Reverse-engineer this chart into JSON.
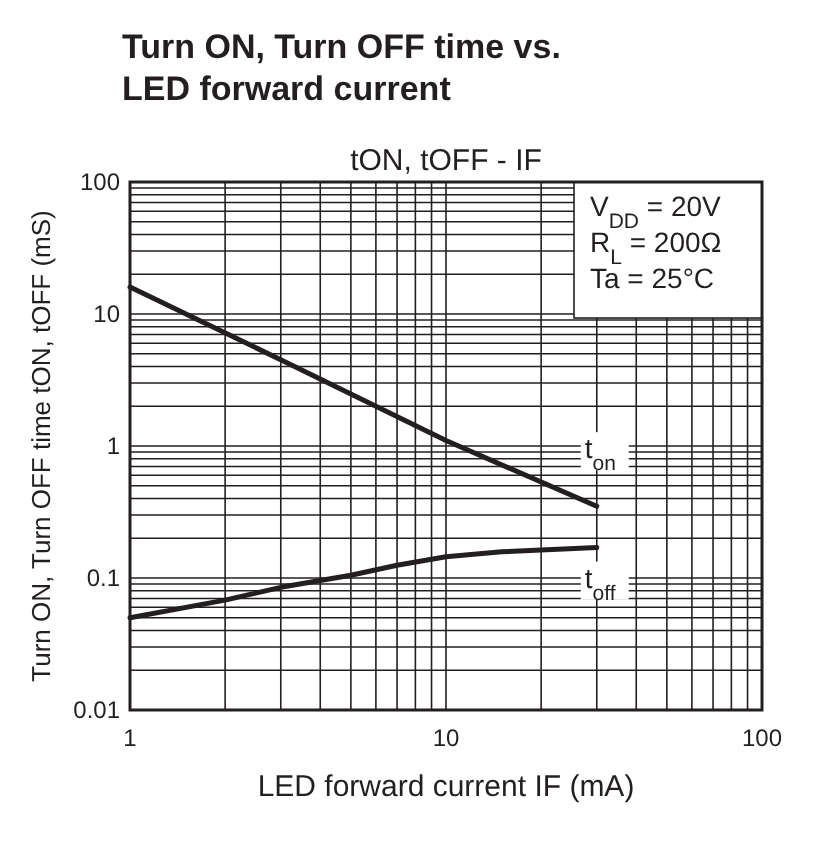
{
  "chart_data": {
    "type": "line",
    "title": "Turn ON, Turn OFF time vs. LED forward current",
    "subtitle": "tON, tOFF - IF",
    "xlabel": "LED forward current IF (mA)",
    "ylabel": "Turn ON, Turn OFF time tON, tOFF (mS)",
    "log": "xy",
    "grid": true,
    "line_style": "solid",
    "xlim": [
      1,
      100
    ],
    "xticks": [
      1,
      {
        "value": 2,
        "label": null
      },
      {
        "value": 3,
        "label": null
      },
      {
        "value": 4,
        "label": null
      },
      {
        "value": 5,
        "label": null
      },
      {
        "value": 6,
        "label": null
      },
      {
        "value": 7,
        "label": null
      },
      {
        "value": 8,
        "label": null
      },
      {
        "value": 9,
        "label": null
      },
      10,
      {
        "value": 20,
        "label": null
      },
      {
        "value": 30,
        "label": null
      },
      {
        "value": 40,
        "label": null
      },
      {
        "value": 50,
        "label": null
      },
      {
        "value": 60,
        "label": null
      },
      {
        "value": 70,
        "label": null
      },
      {
        "value": 80,
        "label": null
      },
      {
        "value": 90,
        "label": null
      },
      100
    ],
    "ylim": [
      0.01,
      100
    ],
    "yticks": [
      0.01,
      {
        "value": 0.02,
        "label": null
      },
      {
        "value": 0.03,
        "label": null
      },
      {
        "value": 0.04,
        "label": null
      },
      {
        "value": 0.05,
        "label": null
      },
      {
        "value": 0.06,
        "label": null
      },
      {
        "value": 0.07,
        "label": null
      },
      {
        "value": 0.08,
        "label": null
      },
      {
        "value": 0.09,
        "label": null
      },
      0.1,
      {
        "value": 0.2,
        "label": null
      },
      {
        "value": 0.3,
        "label": null
      },
      {
        "value": 0.4,
        "label": null
      },
      {
        "value": 0.5,
        "label": null
      },
      {
        "value": 0.6,
        "label": null
      },
      {
        "value": 0.7,
        "label": null
      },
      {
        "value": 0.8,
        "label": null
      },
      {
        "value": 0.9,
        "label": null
      },
      1,
      {
        "value": 2,
        "label": null
      },
      {
        "value": 3,
        "label": null
      },
      {
        "value": 4,
        "label": null
      },
      {
        "value": 5,
        "label": null
      },
      {
        "value": 6,
        "label": null
      },
      {
        "value": 7,
        "label": null
      },
      {
        "value": 8,
        "label": null
      },
      {
        "value": 9,
        "label": null
      },
      10,
      {
        "value": 20,
        "label": null
      },
      {
        "value": 30,
        "label": null
      },
      {
        "value": 40,
        "label": null
      },
      {
        "value": 50,
        "label": null
      },
      {
        "value": 60,
        "label": null
      },
      {
        "value": 70,
        "label": null
      },
      {
        "value": 80,
        "label": null
      },
      {
        "value": 90,
        "label": null
      },
      100
    ],
    "annotations": [
      "V$_{DD}$ = 20V",
      "R$_{L}$ = 200Ω",
      "Ta = 25°C"
    ],
    "series": [
      {
        "name": "t$_{on}$",
        "color": "#231f20",
        "x": [
          1,
          3,
          10,
          30
        ],
        "values": [
          16,
          4.5,
          1.1,
          0.35
        ]
      },
      {
        "name": "t$_{off}$",
        "color": "#231f20",
        "x": [
          1,
          2,
          3,
          5,
          7,
          10,
          15,
          20,
          30
        ],
        "values": [
          0.05,
          0.068,
          0.085,
          0.105,
          0.125,
          0.145,
          0.158,
          0.163,
          0.17
        ]
      }
    ]
  }
}
